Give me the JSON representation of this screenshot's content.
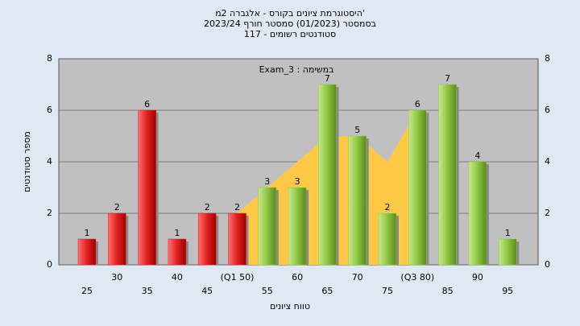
{
  "chart_data": {
    "type": "bar",
    "title": "היסטוגרמת ציונים בקורס - אלגברה 2מ'",
    "subtitle": "בסמסטר (01/2023) סמסטר חורף 2023/24",
    "subtitle2": "117 - סטודנטים רשומים",
    "annotation": "Exam_3 : במשימה",
    "x_label": "טווח ציונים",
    "y_label": "מספר סטודנטים",
    "categories": [
      "25",
      "30",
      "35",
      "40",
      "45",
      "(Q1 50)",
      "55",
      "60",
      "65",
      "70",
      "75",
      "(Q3 80)",
      "85",
      "90",
      "95"
    ],
    "values": [
      1,
      2,
      6,
      1,
      2,
      2,
      3,
      3,
      7,
      5,
      2,
      6,
      7,
      4,
      1
    ],
    "colors": [
      "#e02020",
      "#e02020",
      "#e02020",
      "#e02020",
      "#e02020",
      "#e02020",
      "#8dc63f",
      "#8dc63f",
      "#8dc63f",
      "#8dc63f",
      "#8dc63f",
      "#8dc63f",
      "#8dc63f",
      "#8dc63f",
      "#8dc63f"
    ],
    "area": {
      "color": "#ffc845",
      "values": [
        null,
        null,
        null,
        null,
        null,
        2,
        3,
        4,
        5,
        5,
        4,
        6,
        null,
        null,
        null
      ]
    },
    "ylim": [
      0,
      8
    ],
    "yticks": [
      0,
      2,
      4,
      6,
      8
    ],
    "grid": true
  }
}
